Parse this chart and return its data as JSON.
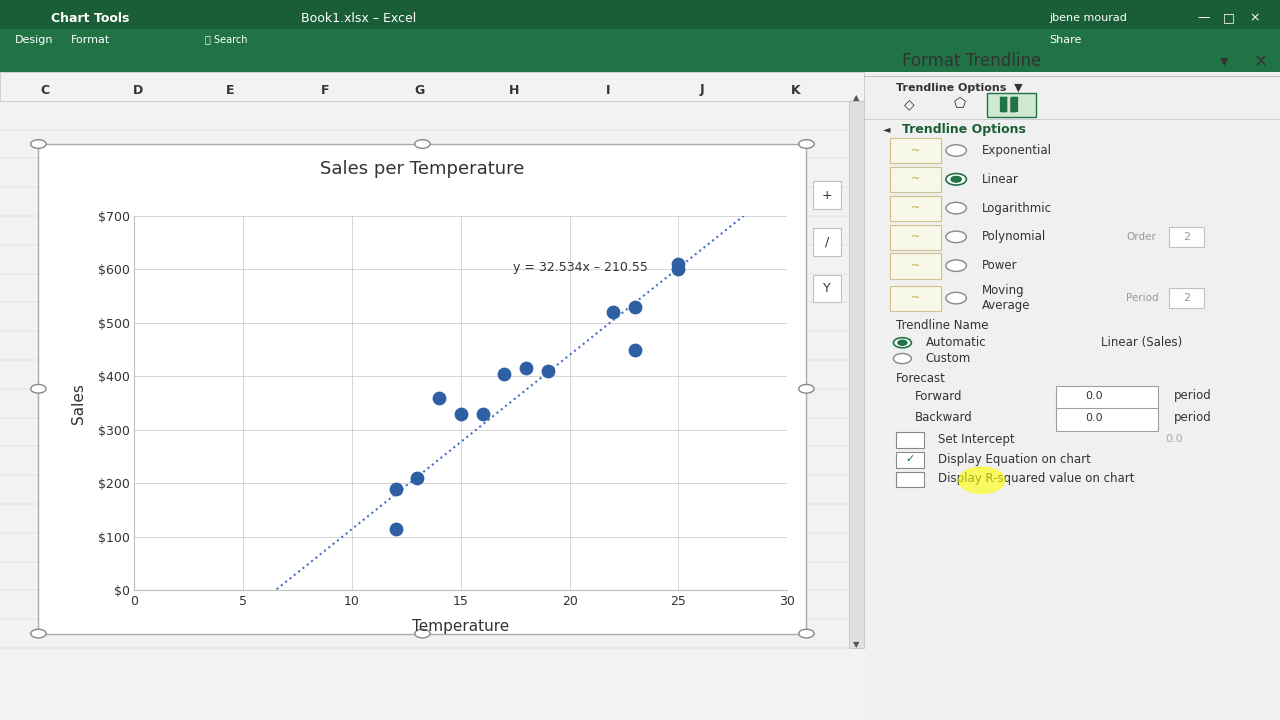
{
  "title": "Sales per Temperature",
  "xlabel": "Temperature",
  "ylabel": "Sales",
  "scatter_x": [
    12,
    12,
    13,
    14,
    15,
    16,
    17,
    18,
    19,
    22,
    23,
    23,
    25,
    25
  ],
  "scatter_y": [
    190,
    115,
    210,
    360,
    330,
    330,
    405,
    415,
    410,
    520,
    530,
    450,
    610,
    600
  ],
  "trendline_eq": "y = 32.534x – 210.55",
  "dot_color": "#2e5fa3",
  "trendline_color": "#4472c4",
  "xlim": [
    0,
    30
  ],
  "ylim": [
    0,
    700
  ],
  "xticks": [
    0,
    5,
    10,
    15,
    20,
    25,
    30
  ],
  "yticks": [
    0,
    100,
    200,
    300,
    400,
    500,
    600,
    700
  ],
  "ytick_labels": [
    "$0",
    "$100",
    "$200",
    "$300",
    "$400",
    "$500",
    "$600",
    "$700"
  ],
  "bg_excel_top": "#217346",
  "bg_chart_area": "#f2f2f2",
  "bg_plot_area": "#ffffff",
  "panel_bg": "#f0f0f0",
  "panel_title": "Format Trendline",
  "panel_section": "Trendline Options",
  "panel_options": [
    "Exponential",
    "Linear",
    "Logarithmic",
    "Polynomial",
    "Power",
    "Moving\nAverage"
  ],
  "panel_linear_selected": true,
  "trendline_name_label": "Trendline Name",
  "automatic_label": "Automatic",
  "custom_label": "Custom",
  "linear_sales_label": "Linear (Sales)",
  "forecast_label": "Forecast",
  "forward_label": "Forward",
  "backward_label": "Backward",
  "set_intercept_label": "Set Intercept",
  "display_eq_label": "Display Equation on chart",
  "display_r2_label": "Display R-squared value on chart",
  "period_label": "period",
  "order_label": "Order",
  "period2_label": "Period",
  "col_headers": [
    "C",
    "D",
    "E",
    "F",
    "G",
    "H",
    "I",
    "J",
    "K"
  ],
  "excel_bg": "#217346",
  "scrollbar_color": "#c0c0c0"
}
